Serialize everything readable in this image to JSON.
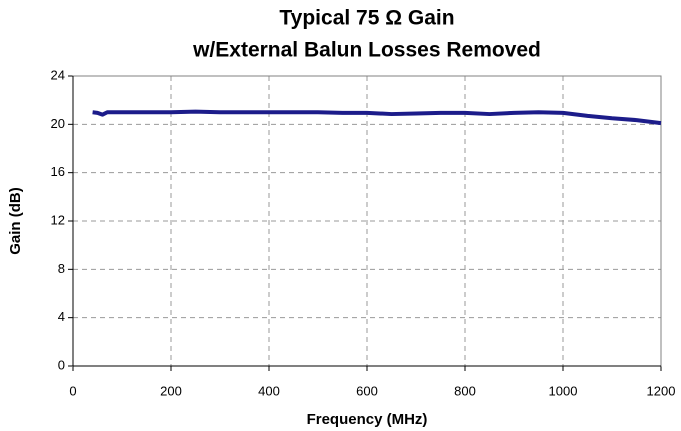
{
  "chart_data": {
    "type": "line",
    "title": [
      "Typical 75 Ω Gain",
      "w/External Balun Losses Removed"
    ],
    "x_label": "Frequency (MHz)",
    "y_label": "Gain (dB)",
    "series": [
      {
        "color": "#1c1c8a",
        "x": [
          40,
          50,
          60,
          70,
          100,
          150,
          200,
          250,
          300,
          350,
          400,
          450,
          500,
          550,
          600,
          650,
          700,
          750,
          800,
          850,
          900,
          950,
          1000,
          1050,
          1100,
          1150,
          1200
        ],
        "values": [
          21.0,
          20.95,
          20.8,
          21.0,
          21.0,
          21.0,
          21.0,
          21.05,
          21.0,
          21.0,
          21.0,
          21.0,
          21.0,
          20.95,
          20.95,
          20.85,
          20.9,
          20.95,
          20.95,
          20.85,
          20.95,
          21.0,
          20.95,
          20.7,
          20.5,
          20.35,
          20.1
        ]
      }
    ],
    "xlim": [
      0,
      1200
    ],
    "xticks": [
      0,
      200,
      400,
      600,
      800,
      1000,
      1200
    ],
    "ylim": [
      0,
      24
    ],
    "yticks": [
      0,
      4,
      8,
      12,
      16,
      20,
      24
    ],
    "grid": true
  }
}
